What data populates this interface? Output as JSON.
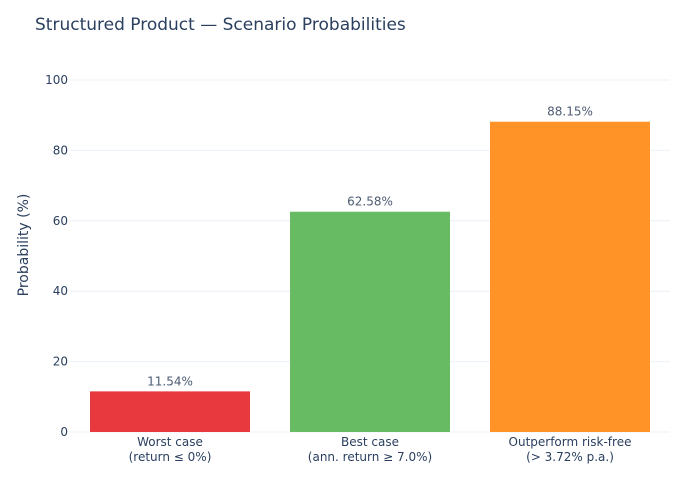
{
  "chart_data": {
    "type": "bar",
    "title": "Structured Product — Scenario Probabilities",
    "xlabel": "",
    "ylabel": "Probability (%)",
    "ylim": [
      0,
      100
    ],
    "yticks": [
      0,
      20,
      40,
      60,
      80,
      100
    ],
    "grid": true,
    "categories": [
      [
        "Worst case",
        "(return ≤ 0%)"
      ],
      [
        "Best case",
        "(ann. return ≥ 7.0%)"
      ],
      [
        "Outperform risk-free",
        "(> 3.72% p.a.)"
      ]
    ],
    "values": [
      11.54,
      62.58,
      88.15
    ],
    "data_labels": [
      "11.54%",
      "62.58%",
      "88.15%"
    ],
    "colors": [
      "#e8393f",
      "#66bb63",
      "#ff9328"
    ]
  }
}
